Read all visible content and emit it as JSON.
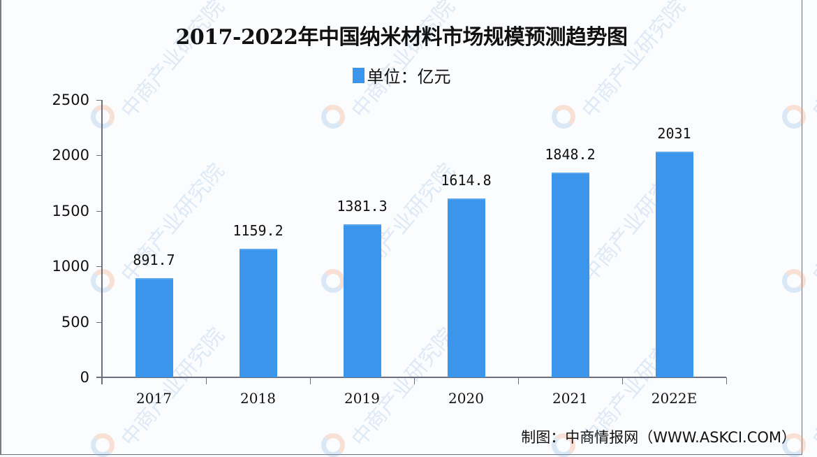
{
  "chart_data": {
    "type": "bar",
    "title": "2017-2022年中国纳米材料市场规模预测趋势图",
    "legend": "单位：亿元",
    "legend_position": "top",
    "categories": [
      "2017",
      "2018",
      "2019",
      "2020",
      "2021",
      "2022E"
    ],
    "values": [
      891.7,
      1159.2,
      1381.3,
      1614.8,
      1848.2,
      2031
    ],
    "value_labels": [
      "891.7",
      "1159.2",
      "1381.3",
      "1614.8",
      "1848.2",
      "2031"
    ],
    "xlabel": "",
    "ylabel": "",
    "ylim": [
      0,
      2500
    ],
    "yticks": [
      "2500",
      "2000",
      "1500",
      "1000",
      "500",
      "0"
    ],
    "grid": false,
    "bar_color": "#3b95ea"
  },
  "source": "制图：中商情报网（WWW.ASKCI.COM）",
  "watermark": "中商产业研究院"
}
